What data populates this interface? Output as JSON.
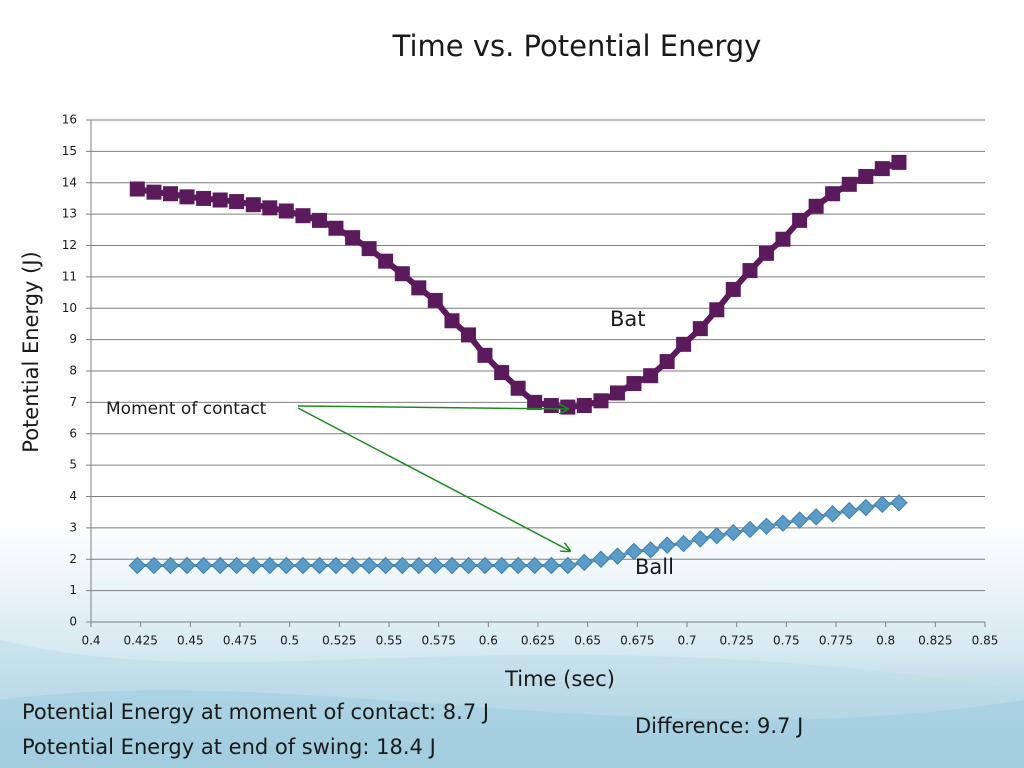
{
  "chart_data": {
    "type": "line",
    "title": "Time vs. Potential Energy",
    "x_label": "Time (sec)",
    "y_label": "Potential Energy (J)",
    "x": [
      0.4233,
      0.4317,
      0.44,
      0.4483,
      0.4567,
      0.465,
      0.4733,
      0.4817,
      0.49,
      0.4983,
      0.5067,
      0.515,
      0.5233,
      0.5317,
      0.54,
      0.5483,
      0.5567,
      0.565,
      0.5733,
      0.5817,
      0.59,
      0.5983,
      0.6067,
      0.615,
      0.6233,
      0.6317,
      0.64,
      0.6483,
      0.6567,
      0.665,
      0.6733,
      0.6817,
      0.69,
      0.6983,
      0.7067,
      0.715,
      0.7233,
      0.7317,
      0.74,
      0.7483,
      0.7567,
      0.765,
      0.7733,
      0.7817,
      0.79,
      0.7983,
      0.8067
    ],
    "series": [
      {
        "color": "#5a1a5c",
        "marker": "square",
        "values": [
          13.8,
          13.7,
          13.65,
          13.55,
          13.5,
          13.45,
          13.4,
          13.3,
          13.2,
          13.1,
          12.95,
          12.8,
          12.55,
          12.25,
          11.9,
          11.5,
          11.1,
          10.65,
          10.25,
          9.6,
          9.15,
          8.5,
          7.95,
          7.45,
          7.0,
          6.9,
          6.85,
          6.9,
          7.05,
          7.3,
          7.6,
          7.85,
          8.3,
          8.85,
          9.35,
          9.95,
          10.6,
          11.2,
          11.75,
          12.2,
          12.8,
          13.25,
          13.65,
          13.95,
          14.2,
          14.45,
          14.65
        ]
      },
      {
        "color": "#5b9bc8",
        "marker": "diamond",
        "values": [
          1.8,
          1.8,
          1.8,
          1.8,
          1.8,
          1.8,
          1.8,
          1.8,
          1.8,
          1.8,
          1.8,
          1.8,
          1.8,
          1.8,
          1.8,
          1.8,
          1.8,
          1.8,
          1.8,
          1.8,
          1.8,
          1.8,
          1.8,
          1.8,
          1.8,
          1.8,
          1.8,
          1.9,
          2.0,
          2.1,
          2.25,
          2.3,
          2.45,
          2.5,
          2.65,
          2.75,
          2.85,
          2.95,
          3.05,
          3.15,
          3.25,
          3.35,
          3.45,
          3.55,
          3.65,
          3.75,
          3.8
        ]
      }
    ],
    "annotations": [
      "Bat",
      "Ball",
      "Moment of contact"
    ],
    "xlim": [
      0.4,
      0.85
    ],
    "xticks": [
      0.4,
      0.425,
      0.45,
      0.475,
      0.5,
      0.525,
      0.55,
      0.575,
      0.6,
      0.625,
      0.65,
      0.675,
      0.7,
      0.725,
      0.75,
      0.775,
      0.8,
      0.825,
      0.85
    ],
    "ylim": [
      0,
      16
    ],
    "yticks": [
      0,
      1,
      2,
      3,
      4,
      5,
      6,
      7,
      8,
      9,
      10,
      11,
      12,
      13,
      14,
      15,
      16
    ],
    "grid": true
  },
  "notes": [
    "Potential Energy at moment of contact: 8.7 J",
    "Potential Energy at end of swing: 18.4 J",
    "Difference: 9.7 J"
  ]
}
